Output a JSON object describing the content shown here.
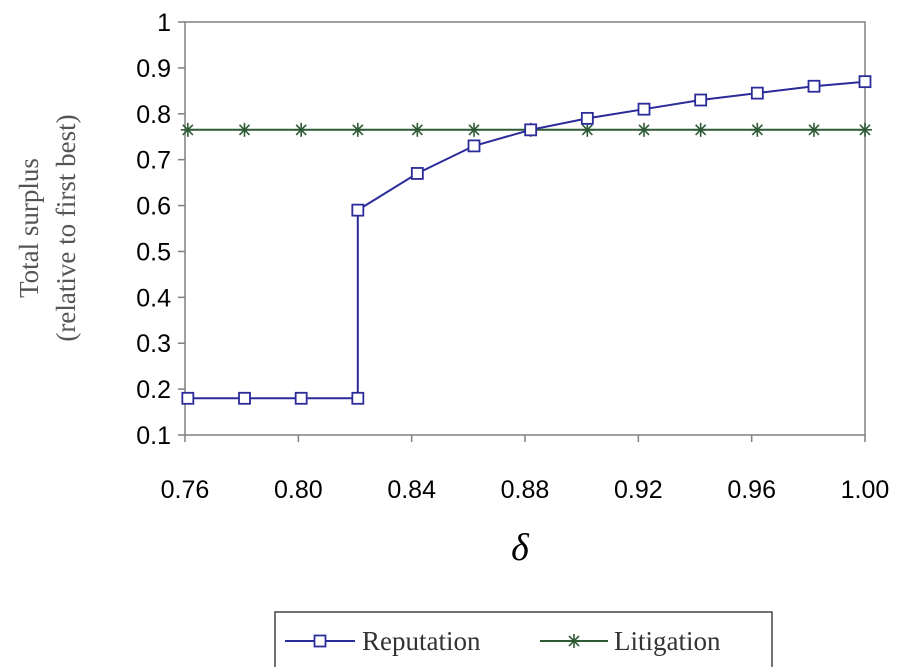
{
  "chart_data": {
    "type": "line",
    "title": "",
    "xlabel": "δ",
    "ylabel_line1": "Total surplus",
    "ylabel_line2": "(relative to first best)",
    "xlim": [
      0.76,
      1.0
    ],
    "ylim": [
      0.1,
      1.0
    ],
    "x_ticks": [
      "0.76",
      "0.80",
      "0.84",
      "0.88",
      "0.92",
      "0.96",
      "1.00"
    ],
    "y_ticks": [
      "0.1",
      "0.2",
      "0.3",
      "0.4",
      "0.5",
      "0.6",
      "0.7",
      "0.8",
      "0.9",
      "1"
    ],
    "legend_position": "bottom",
    "grid": false,
    "series": [
      {
        "name": "Reputation",
        "color": "#2b2b9a",
        "marker": "square",
        "x": [
          0.761,
          0.781,
          0.801,
          0.821,
          0.821,
          0.842,
          0.862,
          0.882,
          0.902,
          0.922,
          0.942,
          0.962,
          0.982,
          1.0
        ],
        "y": [
          0.18,
          0.18,
          0.18,
          0.18,
          0.59,
          0.67,
          0.73,
          0.765,
          0.79,
          0.81,
          0.83,
          0.845,
          0.86,
          0.87
        ]
      },
      {
        "name": "Litigation",
        "color": "#2e5a36",
        "marker": "asterisk",
        "x": [
          0.761,
          0.781,
          0.801,
          0.821,
          0.842,
          0.862,
          0.882,
          0.902,
          0.922,
          0.942,
          0.962,
          0.982,
          1.0
        ],
        "y": [
          0.765,
          0.765,
          0.765,
          0.765,
          0.765,
          0.765,
          0.765,
          0.765,
          0.765,
          0.765,
          0.765,
          0.765,
          0.765
        ]
      }
    ]
  }
}
